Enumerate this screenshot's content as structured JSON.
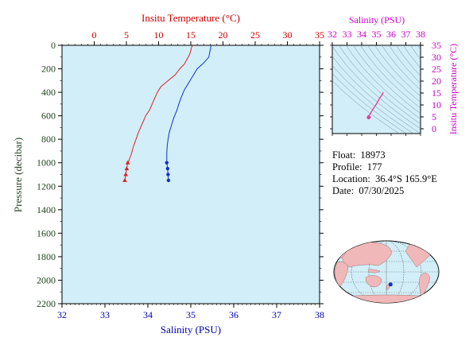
{
  "chart_data": [
    {
      "type": "line",
      "top_axis": {
        "label": "Insitu Temperature (°C)",
        "range": [
          -5,
          35
        ],
        "ticks": [
          0,
          5,
          10,
          15,
          20,
          25,
          30,
          35
        ],
        "color": "#cc0000"
      },
      "bottom_axis": {
        "label": "Salinity (PSU)",
        "range": [
          32,
          38
        ],
        "ticks": [
          32,
          33,
          34,
          35,
          36,
          37,
          38
        ],
        "color": "#0000aa"
      },
      "left_axis": {
        "label": "Pressure (decibar)",
        "range": [
          0,
          2200
        ],
        "inverted": true,
        "ticks": [
          0,
          200,
          400,
          600,
          800,
          1000,
          1200,
          1400,
          1600,
          1800,
          2000,
          2200
        ],
        "color": "#224422"
      },
      "plot_background": "#d2eef8",
      "series": [
        {
          "kind": "temperature",
          "color": "#e02020",
          "marker": "triangle",
          "points": [
            [
              15.3,
              0
            ],
            [
              15.1,
              20
            ],
            [
              15.0,
              45
            ],
            [
              14.8,
              80
            ],
            [
              14.4,
              120
            ],
            [
              14.0,
              160
            ],
            [
              13.3,
              200
            ],
            [
              12.6,
              250
            ],
            [
              11.5,
              300
            ],
            [
              10.4,
              350
            ],
            [
              9.8,
              400
            ],
            [
              9.4,
              450
            ],
            [
              9.0,
              500
            ],
            [
              8.6,
              550
            ],
            [
              8.0,
              600
            ],
            [
              7.6,
              650
            ],
            [
              7.2,
              700
            ],
            [
              6.8,
              750
            ],
            [
              6.5,
              800
            ],
            [
              6.1,
              860
            ],
            [
              5.8,
              920
            ],
            [
              5.4,
              980
            ],
            [
              5.2,
              1000
            ]
          ],
          "marked_points": [
            [
              5.2,
              1000
            ],
            [
              5.05,
              1050
            ],
            [
              4.9,
              1100
            ],
            [
              4.75,
              1150
            ]
          ]
        },
        {
          "kind": "salinity",
          "color": "#1030d0",
          "marker": "circle",
          "points": [
            [
              35.47,
              0
            ],
            [
              35.46,
              30
            ],
            [
              35.44,
              60
            ],
            [
              35.42,
              100
            ],
            [
              35.3,
              150
            ],
            [
              35.15,
              200
            ],
            [
              35.05,
              260
            ],
            [
              34.95,
              320
            ],
            [
              34.85,
              380
            ],
            [
              34.78,
              440
            ],
            [
              34.72,
              500
            ],
            [
              34.67,
              560
            ],
            [
              34.6,
              620
            ],
            [
              34.55,
              680
            ],
            [
              34.5,
              740
            ],
            [
              34.47,
              800
            ],
            [
              34.45,
              860
            ],
            [
              34.44,
              920
            ],
            [
              34.44,
              980
            ],
            [
              34.44,
              1000
            ]
          ],
          "marked_points": [
            [
              34.44,
              1000
            ],
            [
              34.46,
              1050
            ],
            [
              34.47,
              1100
            ],
            [
              34.48,
              1150
            ]
          ]
        }
      ]
    },
    {
      "type": "scatter",
      "top_axis": {
        "label": "Salinity (PSU)",
        "range": [
          32,
          38
        ],
        "ticks": [
          32,
          33,
          34,
          35,
          36,
          37,
          38
        ],
        "color": "#cc00cc"
      },
      "right_axis": {
        "label": "Insitu Temperature (°C)",
        "range": [
          -2,
          35
        ],
        "ticks": [
          0,
          5,
          10,
          15,
          20,
          25,
          30,
          35
        ],
        "color": "#cc00cc"
      },
      "plot_background": "#d2eef8",
      "density_contours": true,
      "series": [
        {
          "color": "#e0409a",
          "points": [
            [
              35.47,
              15.3
            ],
            [
              35.4,
              14.4
            ],
            [
              35.2,
              12.6
            ],
            [
              35.0,
              10.4
            ],
            [
              34.85,
              9.0
            ],
            [
              34.7,
              7.6
            ],
            [
              34.6,
              6.5
            ],
            [
              34.5,
              5.6
            ],
            [
              34.46,
              5.2
            ],
            [
              34.48,
              4.8
            ]
          ]
        }
      ]
    }
  ],
  "float_info": {
    "float_label": "Float:",
    "float_value": "18973",
    "profile_label": "Profile:",
    "profile_value": "177",
    "location_label": "Location:",
    "location_value": "36.4°S  165.9°E",
    "date_label": "Date:",
    "date_value": "07/30/2025"
  },
  "map": {
    "ocean_color": "#d2eef8",
    "land_color": "#f0b8b8",
    "marker_color": "#1030d0",
    "marker_lat": -36.4,
    "marker_lon": 165.9
  }
}
